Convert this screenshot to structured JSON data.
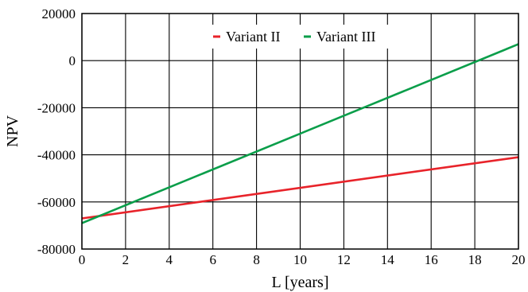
{
  "chart_data": {
    "type": "line",
    "xlabel": "L [years]",
    "ylabel": "NPV",
    "xlim": [
      0,
      20
    ],
    "ylim": [
      -80000,
      20000
    ],
    "x_ticks": [
      0,
      2,
      4,
      6,
      8,
      10,
      12,
      14,
      16,
      18,
      20
    ],
    "y_ticks": [
      20000,
      0,
      -20000,
      -40000,
      -60000,
      -80000
    ],
    "grid": true,
    "legend_position": "top-center",
    "series": [
      {
        "name": "Variant II",
        "color": "#e8232a",
        "x": [
          0,
          20
        ],
        "y": [
          -67000,
          -41000
        ]
      },
      {
        "name": "Variant III",
        "color": "#0a9e4a",
        "x": [
          0,
          20
        ],
        "y": [
          -69000,
          7000
        ]
      }
    ]
  }
}
